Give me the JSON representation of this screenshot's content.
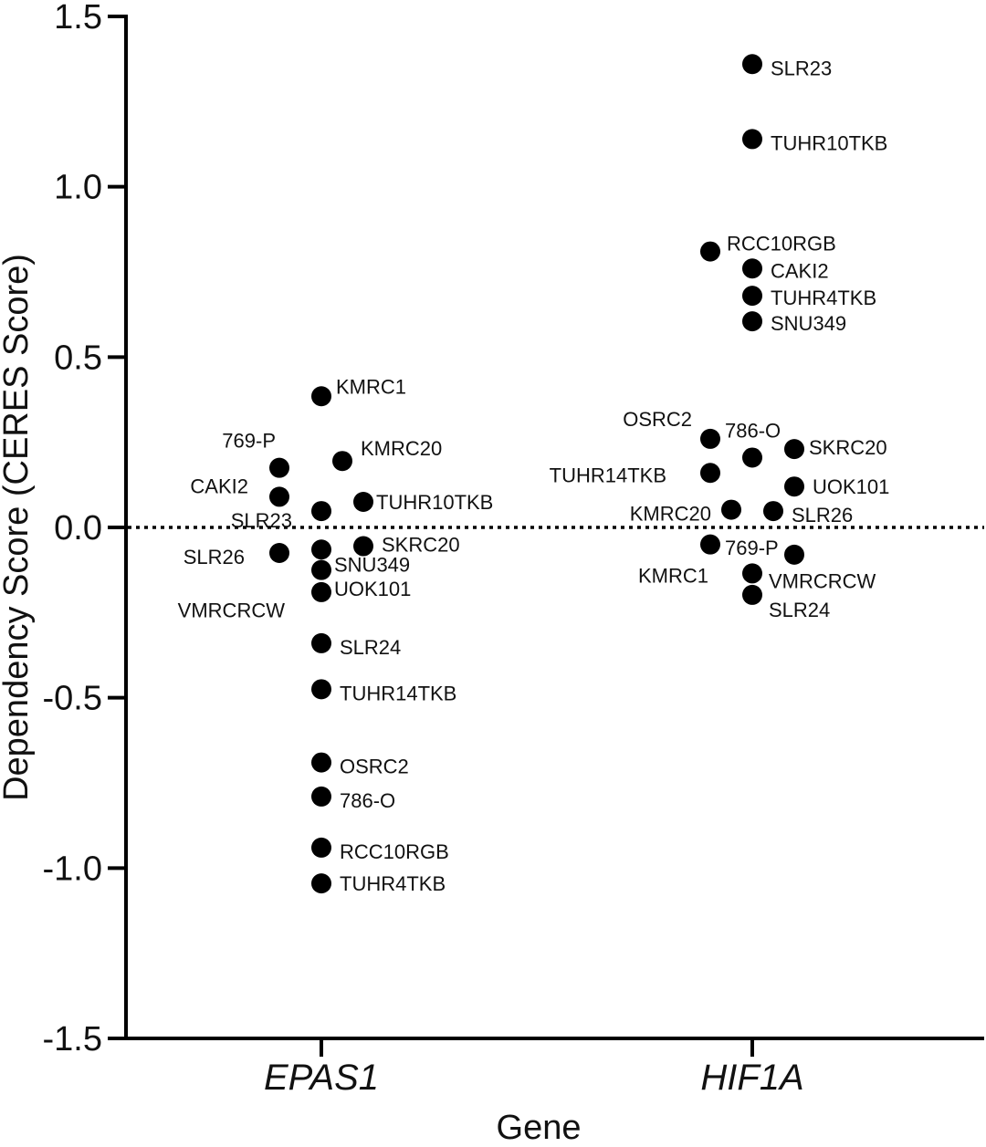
{
  "chart_data": {
    "type": "scatter",
    "title": "",
    "xlabel": "Gene",
    "ylabel": "Dependency Score (CERES Score)",
    "ylim": [
      -1.5,
      1.5
    ],
    "yticks": [
      "1.5",
      "1.0",
      "0.5",
      "0.0",
      "-0.5",
      "-1.0",
      "-1.5"
    ],
    "categories": [
      "EPAS1",
      "HIF1A"
    ],
    "reference_line": 0.0,
    "series": [
      {
        "name": "EPAS1",
        "points": [
          {
            "label": "KMRC1",
            "value": 0.385,
            "jitter": 0
          },
          {
            "label": "769-P",
            "value": 0.175,
            "jitter": -1
          },
          {
            "label": "KMRC20",
            "value": 0.195,
            "jitter": 0.5
          },
          {
            "label": "CAKI2",
            "value": 0.09,
            "jitter": -1
          },
          {
            "label": "SLR23",
            "value": 0.048,
            "jitter": 0
          },
          {
            "label": "TUHR10TKB",
            "value": 0.075,
            "jitter": 1
          },
          {
            "label": "SLR26",
            "value": -0.075,
            "jitter": -1
          },
          {
            "label": "SKRC20",
            "value": -0.055,
            "jitter": 1
          },
          {
            "label": "SNU349",
            "value": -0.065,
            "jitter": 0
          },
          {
            "label": "VMRCRCW",
            "value": -0.125,
            "jitter": 0
          },
          {
            "label": "UOK101",
            "value": -0.19,
            "jitter": 0
          },
          {
            "label": "SLR24",
            "value": -0.34,
            "jitter": 0
          },
          {
            "label": "TUHR14TKB",
            "value": -0.475,
            "jitter": 0
          },
          {
            "label": "OSRC2",
            "value": -0.69,
            "jitter": 0
          },
          {
            "label": "786-O",
            "value": -0.79,
            "jitter": 0
          },
          {
            "label": "RCC10RGB",
            "value": -0.94,
            "jitter": 0
          },
          {
            "label": "TUHR4TKB",
            "value": -1.045,
            "jitter": 0
          }
        ]
      },
      {
        "name": "HIF1A",
        "points": [
          {
            "label": "SLR23",
            "value": 1.36,
            "jitter": 0
          },
          {
            "label": "TUHR10TKB",
            "value": 1.14,
            "jitter": 0
          },
          {
            "label": "RCC10RGB",
            "value": 0.81,
            "jitter": -1
          },
          {
            "label": "CAKI2",
            "value": 0.76,
            "jitter": 0
          },
          {
            "label": "TUHR4TKB",
            "value": 0.68,
            "jitter": 0
          },
          {
            "label": "SNU349",
            "value": 0.605,
            "jitter": 0
          },
          {
            "label": "OSRC2",
            "value": 0.26,
            "jitter": -1
          },
          {
            "label": "786-O",
            "value": 0.205,
            "jitter": 0
          },
          {
            "label": "SKRC20",
            "value": 0.23,
            "jitter": 1
          },
          {
            "label": "TUHR14TKB",
            "value": 0.16,
            "jitter": -1
          },
          {
            "label": "UOK101",
            "value": 0.12,
            "jitter": 1
          },
          {
            "label": "KMRC20",
            "value": 0.052,
            "jitter": -0.5
          },
          {
            "label": "SLR26",
            "value": 0.048,
            "jitter": 0.5
          },
          {
            "label": "KMRC1",
            "value": -0.05,
            "jitter": -1
          },
          {
            "label": "769-P",
            "value": -0.08,
            "jitter": 1
          },
          {
            "label": "VMRCRCW",
            "value": -0.135,
            "jitter": 0
          },
          {
            "label": "SLR24",
            "value": -0.198,
            "jitter": 0
          }
        ]
      }
    ],
    "colors": {
      "points": "#000000",
      "axis": "#000000",
      "text": "#111111"
    }
  }
}
